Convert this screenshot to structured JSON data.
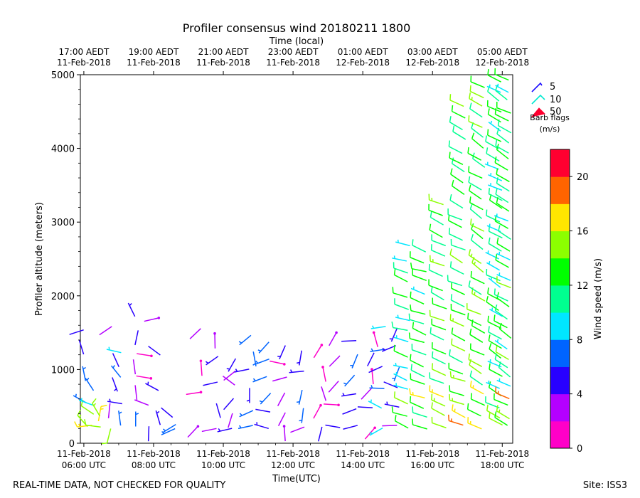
{
  "chart_data": {
    "type": "wind-barb-profile",
    "title": "Profiler consensus wind 20180211 1800",
    "xlabel": "Time(UTC)",
    "top_xlabel": "Time (local)",
    "ylabel": "Profiler altitude (meters)",
    "ylim": [
      0,
      5000
    ],
    "y_ticks": [
      "0",
      "1000",
      "2000",
      "3000",
      "4000",
      "5000"
    ],
    "x_ticks_utc": [
      {
        "date": "11-Feb-2018",
        "time": "06:00 UTC",
        "hour": 6
      },
      {
        "date": "11-Feb-2018",
        "time": "08:00 UTC",
        "hour": 8
      },
      {
        "date": "11-Feb-2018",
        "time": "10:00 UTC",
        "hour": 10
      },
      {
        "date": "11-Feb-2018",
        "time": "12:00 UTC",
        "hour": 12
      },
      {
        "date": "11-Feb-2018",
        "time": "14:00 UTC",
        "hour": 14
      },
      {
        "date": "11-Feb-2018",
        "time": "16:00 UTC",
        "hour": 16
      },
      {
        "date": "11-Feb-2018",
        "time": "18:00 UTC",
        "hour": 18
      }
    ],
    "x_ticks_local": [
      {
        "time": "17:00 AEDT",
        "date": "11-Feb-2018",
        "hour": 6
      },
      {
        "time": "19:00 AEDT",
        "date": "11-Feb-2018",
        "hour": 8
      },
      {
        "time": "21:00 AEDT",
        "date": "11-Feb-2018",
        "hour": 10
      },
      {
        "time": "23:00 AEDT",
        "date": "11-Feb-2018",
        "hour": 12
      },
      {
        "time": "01:00 AEDT",
        "date": "12-Feb-2018",
        "hour": 14
      },
      {
        "time": "03:00 AEDT",
        "date": "12-Feb-2018",
        "hour": 16
      },
      {
        "time": "05:00 AEDT",
        "date": "12-Feb-2018",
        "hour": 18
      }
    ],
    "x_range_utc_hours": [
      5.9,
      18.3
    ],
    "barb_legend": {
      "title_line1": "Barb flags",
      "title_line2": "(m/s)",
      "items": [
        {
          "label": "5",
          "color": "#1a0aff"
        },
        {
          "label": "10",
          "color": "#00e8d0"
        },
        {
          "label": "50",
          "color": "#ff0030"
        }
      ]
    },
    "colorbar": {
      "label": "Wind speed (m/s)",
      "min": 0,
      "max": 22,
      "step": 2,
      "tick_labels": [
        "0",
        "4",
        "8",
        "12",
        "16",
        "20"
      ],
      "tick_values": [
        0,
        4,
        8,
        12,
        16,
        20
      ],
      "colors": [
        "#ff00c8",
        "#b400ff",
        "#2800ff",
        "#0064ff",
        "#00e6ff",
        "#00ff90",
        "#00ff00",
        "#8cff00",
        "#ffe600",
        "#ff6400",
        "#ff0030"
      ]
    },
    "profiles": [
      {
        "t": 6.05,
        "top": 1520,
        "dens": 5,
        "speed": 5,
        "dir": 300
      },
      {
        "t": 6.25,
        "top": 700,
        "dens": 4,
        "speed": 9,
        "dir": 320
      },
      {
        "t": 6.45,
        "top": 380,
        "dens": 3,
        "speed": 15,
        "dir": 330
      },
      {
        "t": 6.8,
        "top": 1560,
        "dens": 5,
        "speed": 3,
        "dir": 210
      },
      {
        "t": 7.1,
        "top": 1200,
        "dens": 4,
        "speed": 7,
        "dir": 300
      },
      {
        "t": 7.5,
        "top": 1700,
        "dens": 5,
        "speed": 5,
        "dir": 320
      },
      {
        "t": 7.9,
        "top": 1180,
        "dens": 4,
        "speed": 2,
        "dir": 240
      },
      {
        "t": 8.2,
        "top": 1720,
        "dens": 4,
        "speed": 3,
        "dir": 290
      },
      {
        "t": 8.6,
        "top": 340,
        "dens": 3,
        "speed": 6,
        "dir": 270
      },
      {
        "t": 9.3,
        "top": 1550,
        "dens": 4,
        "speed": 1,
        "dir": 230
      },
      {
        "t": 9.8,
        "top": 1480,
        "dens": 5,
        "speed": 3,
        "dir": 200
      },
      {
        "t": 10.3,
        "top": 1150,
        "dens": 6,
        "speed": 5,
        "dir": 250
      },
      {
        "t": 10.8,
        "top": 1480,
        "dens": 6,
        "speed": 7,
        "dir": 220
      },
      {
        "t": 11.3,
        "top": 1380,
        "dens": 6,
        "speed": 5,
        "dir": 240
      },
      {
        "t": 11.8,
        "top": 1320,
        "dens": 6,
        "speed": 3,
        "dir": 230
      },
      {
        "t": 12.3,
        "top": 1260,
        "dens": 5,
        "speed": 5,
        "dir": 220
      },
      {
        "t": 12.8,
        "top": 1320,
        "dens": 5,
        "speed": 2,
        "dir": 210
      },
      {
        "t": 13.3,
        "top": 1520,
        "dens": 5,
        "speed": 3,
        "dir": 230
      },
      {
        "t": 13.8,
        "top": 1420,
        "dens": 6,
        "speed": 5,
        "dir": 240
      },
      {
        "t": 14.3,
        "top": 1480,
        "dens": 6,
        "speed": 3,
        "dir": 220
      },
      {
        "t": 14.6,
        "top": 1560,
        "dens": 6,
        "speed": 7,
        "dir": 260
      },
      {
        "t": 15.0,
        "top": 1580,
        "dens": 6,
        "speed": 5,
        "dir": 250
      },
      {
        "t": 15.3,
        "top": 2650,
        "dens": 16,
        "speed": 11,
        "dir": 290
      },
      {
        "t": 15.8,
        "top": 2600,
        "dens": 18,
        "speed": 12,
        "dir": 290
      },
      {
        "t": 16.35,
        "top": 3250,
        "dens": 22,
        "speed": 13,
        "dir": 295
      },
      {
        "t": 16.9,
        "top": 4550,
        "dens": 30,
        "speed": 13,
        "dir": 295
      },
      {
        "t": 17.45,
        "top": 4850,
        "dens": 34,
        "speed": 13,
        "dir": 300
      },
      {
        "t": 17.95,
        "top": 4900,
        "dens": 36,
        "speed": 11,
        "dir": 300
      },
      {
        "t": 18.2,
        "top": 4900,
        "dens": 36,
        "speed": 12,
        "dir": 300
      }
    ]
  },
  "footer": {
    "left_note": "REAL-TIME DATA, NOT CHECKED FOR QUALITY",
    "site": "Site: ISS3"
  }
}
